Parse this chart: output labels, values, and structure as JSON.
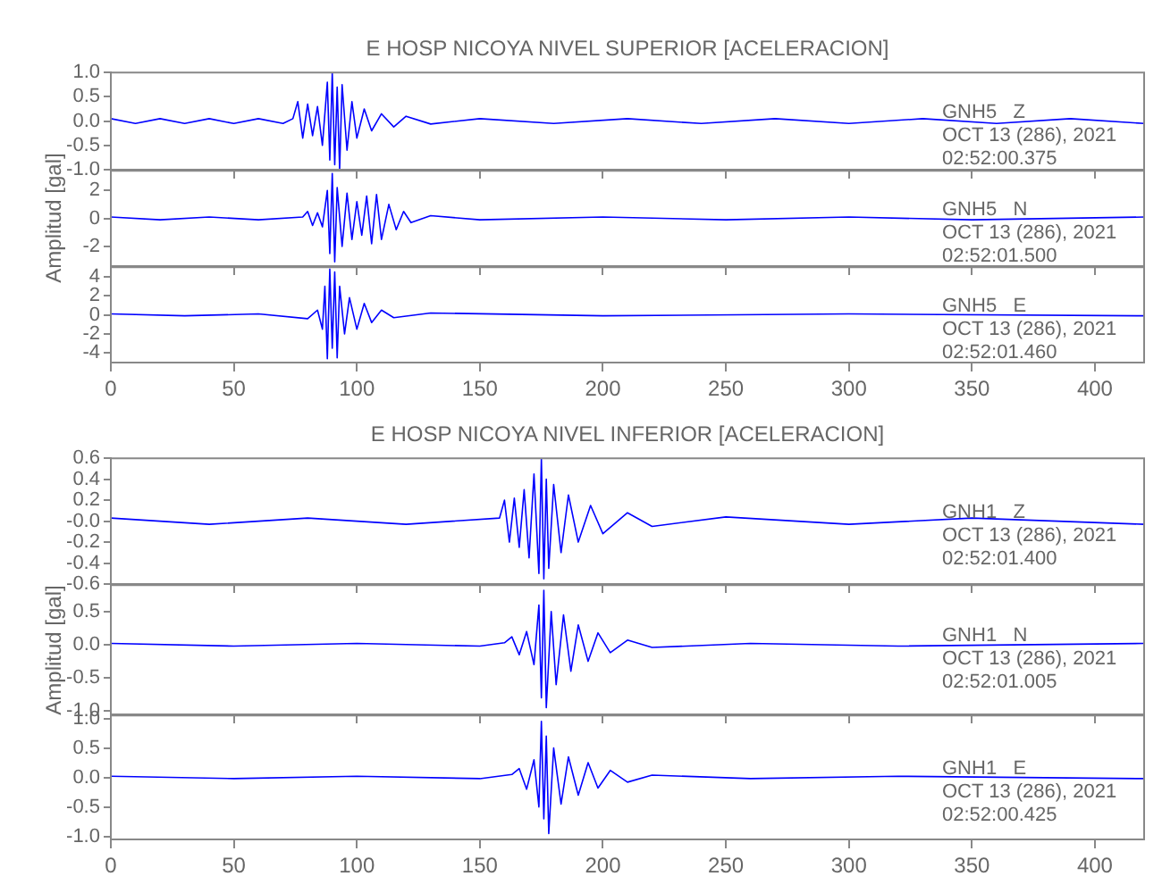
{
  "chart_data": [
    {
      "type": "line",
      "title": "E HOSP NICOYA NIVEL SUPERIOR [ACELERACION]",
      "color": "#0000ff",
      "marker": "none",
      "tick_labels": "y",
      "xlim": [
        0,
        420
      ],
      "xticks": [
        0,
        50,
        100,
        150,
        200,
        250,
        300,
        350,
        400
      ],
      "ylim": [
        -1,
        1
      ],
      "yticks": [
        {
          "value": -1,
          "label": "-1.0"
        },
        {
          "value": -0.5,
          "label": "-0.5"
        },
        {
          "value": 0,
          "label": "0.0"
        },
        {
          "value": 0.5,
          "label": "0.5"
        },
        {
          "value": 1,
          "label": "1.0"
        }
      ],
      "annotations": [
        "GNH5   Z",
        "OCT 13 (286), 2021",
        "02:52:00.375"
      ],
      "x": [
        0,
        10,
        20,
        30,
        40,
        50,
        60,
        70,
        74,
        76,
        78,
        80,
        82,
        84,
        86,
        88,
        89,
        90,
        91,
        92,
        93,
        94,
        96,
        98,
        100,
        103,
        106,
        110,
        115,
        120,
        130,
        150,
        180,
        210,
        240,
        270,
        300,
        330,
        360,
        390,
        420
      ],
      "values": [
        0.05,
        -0.05,
        0.05,
        -0.05,
        0.05,
        -0.05,
        0.05,
        -0.05,
        0.05,
        0.4,
        -0.35,
        0.35,
        -0.3,
        0.3,
        -0.5,
        0.8,
        -0.8,
        1.0,
        -0.9,
        0.7,
        -1.0,
        0.75,
        -0.6,
        0.4,
        -0.35,
        0.25,
        -0.2,
        0.15,
        -0.12,
        0.1,
        -0.06,
        0.05,
        -0.05,
        0.05,
        -0.05,
        0.05,
        -0.05,
        0.05,
        -0.05,
        0.05,
        -0.05
      ]
    },
    {
      "type": "line",
      "ylabel": "Amplitud [gal]",
      "color": "#0000ff",
      "marker": "none",
      "tick_labels": "y",
      "xlim": [
        0,
        420
      ],
      "xticks": [
        0,
        50,
        100,
        150,
        200,
        250,
        300,
        350,
        400
      ],
      "ylim": [
        -3.4,
        3.4
      ],
      "yticks": [
        -2,
        0,
        2
      ],
      "annotations": [
        "GNH5   N",
        "OCT 13 (286), 2021",
        "02:52:01.500"
      ],
      "x": [
        0,
        20,
        40,
        60,
        78,
        80,
        82,
        84,
        86,
        88,
        89,
        90,
        91,
        92,
        94,
        96,
        98,
        100,
        102,
        104,
        106,
        108,
        110,
        113,
        116,
        119,
        122,
        130,
        150,
        200,
        250,
        300,
        350,
        420
      ],
      "values": [
        0.1,
        -0.1,
        0.1,
        -0.1,
        0.1,
        0.5,
        -0.5,
        0.4,
        -0.6,
        2.0,
        -2.5,
        3.2,
        -3.1,
        2.2,
        -2.0,
        1.8,
        -1.5,
        1.2,
        -1.2,
        1.6,
        -1.8,
        1.7,
        -1.5,
        1.0,
        -0.8,
        0.5,
        -0.3,
        0.2,
        -0.1,
        0.1,
        -0.1,
        0.1,
        -0.1,
        0.1
      ]
    },
    {
      "type": "line",
      "color": "#0000ff",
      "marker": "none",
      "xlim": [
        0,
        420
      ],
      "xticks": [
        0,
        50,
        100,
        150,
        200,
        250,
        300,
        350,
        400
      ],
      "ylim": [
        -5,
        5
      ],
      "yticks": [
        -4,
        -2,
        0,
        2,
        4
      ],
      "annotations": [
        "GNH5   E",
        "OCT 13 (286), 2021",
        "02:52:01.460"
      ],
      "x": [
        0,
        30,
        60,
        80,
        84,
        86,
        87,
        88,
        89,
        90,
        91,
        92,
        93,
        95,
        97,
        100,
        103,
        106,
        110,
        115,
        130,
        200,
        300,
        420
      ],
      "values": [
        0.1,
        -0.1,
        0.1,
        -0.4,
        0.5,
        -1.5,
        3.0,
        -4.6,
        4.8,
        -3.5,
        4.5,
        -4.5,
        3.0,
        -2.0,
        1.8,
        -1.5,
        1.2,
        -0.8,
        0.5,
        -0.3,
        0.2,
        -0.1,
        0.1,
        -0.1
      ]
    },
    {
      "type": "line",
      "title": "E HOSP NICOYA NIVEL INFERIOR [ACELERACION]",
      "color": "#0000ff",
      "marker": "none",
      "tick_labels": "y",
      "xlim": [
        0,
        420
      ],
      "xticks": [
        0,
        50,
        100,
        150,
        200,
        250,
        300,
        350,
        400
      ],
      "ylim": [
        -0.6,
        0.6
      ],
      "yticks": [
        {
          "value": -0.6,
          "label": "-0.6"
        },
        {
          "value": -0.4,
          "label": "-0.4"
        },
        {
          "value": -0.2,
          "label": "-0.2"
        },
        {
          "value": 0,
          "label": "-0.0"
        },
        {
          "value": 0.2,
          "label": "0.2"
        },
        {
          "value": 0.4,
          "label": "0.4"
        },
        {
          "value": 0.6,
          "label": "0.6"
        }
      ],
      "annotations": [
        "GNH1   Z",
        "OCT 13 (286), 2021",
        "02:52:01.400"
      ],
      "x": [
        0,
        40,
        80,
        120,
        158,
        160,
        162,
        164,
        166,
        168,
        170,
        172,
        174,
        175,
        176,
        177,
        178,
        180,
        183,
        186,
        190,
        195,
        200,
        210,
        220,
        250,
        300,
        350,
        420
      ],
      "values": [
        0.03,
        -0.03,
        0.03,
        -0.03,
        0.03,
        0.2,
        -0.2,
        0.22,
        -0.25,
        0.3,
        -0.35,
        0.45,
        -0.5,
        0.6,
        -0.55,
        0.4,
        -0.45,
        0.35,
        -0.3,
        0.25,
        -0.2,
        0.15,
        -0.12,
        0.08,
        -0.05,
        0.04,
        -0.03,
        0.03,
        -0.03
      ]
    },
    {
      "type": "line",
      "ylabel": "Amplitud [gal]",
      "color": "#0000ff",
      "marker": "none",
      "tick_labels": "y",
      "xlim": [
        0,
        420
      ],
      "xticks": [
        0,
        50,
        100,
        150,
        200,
        250,
        300,
        350,
        400
      ],
      "ylim": [
        -1.05,
        0.9
      ],
      "yticks": [
        {
          "value": -1,
          "label": "-1.0"
        },
        {
          "value": -0.5,
          "label": "-0.5"
        },
        {
          "value": 0,
          "label": "0.0"
        },
        {
          "value": 0.5,
          "label": "0.5"
        }
      ],
      "annotations": [
        "GNH1   N",
        "OCT 13 (286), 2021",
        "02:52:01.005"
      ],
      "x": [
        0,
        50,
        100,
        150,
        160,
        163,
        166,
        169,
        172,
        174,
        175,
        176,
        177,
        179,
        181,
        184,
        187,
        190,
        194,
        198,
        203,
        210,
        220,
        260,
        320,
        420
      ],
      "values": [
        0.02,
        -0.02,
        0.02,
        -0.02,
        0.03,
        0.12,
        -0.15,
        0.2,
        -0.3,
        0.6,
        -0.8,
        0.82,
        -0.95,
        0.5,
        -0.6,
        0.45,
        -0.4,
        0.3,
        -0.25,
        0.18,
        -0.12,
        0.07,
        -0.04,
        0.02,
        -0.02,
        0.02
      ]
    },
    {
      "type": "line",
      "color": "#0000ff",
      "marker": "none",
      "xlim": [
        0,
        420
      ],
      "xticks": [
        0,
        50,
        100,
        150,
        200,
        250,
        300,
        350,
        400
      ],
      "ylim": [
        -1.05,
        1.05
      ],
      "yticks": [
        {
          "value": -1,
          "label": "-1.0"
        },
        {
          "value": -0.5,
          "label": "-0.5"
        },
        {
          "value": 0,
          "label": "0.0"
        },
        {
          "value": 0.5,
          "label": "0.5"
        },
        {
          "value": 1,
          "label": "1.0"
        }
      ],
      "annotations": [
        "GNH1   E",
        "OCT 13 (286), 2021",
        "02:52:00.425"
      ],
      "x": [
        0,
        50,
        100,
        150,
        163,
        166,
        169,
        172,
        174,
        175,
        176,
        177,
        178,
        180,
        183,
        186,
        190,
        194,
        198,
        203,
        210,
        220,
        260,
        320,
        420
      ],
      "values": [
        0.02,
        -0.02,
        0.02,
        -0.02,
        0.05,
        0.15,
        -0.2,
        0.3,
        -0.5,
        0.95,
        -0.7,
        0.7,
        -0.95,
        0.5,
        -0.45,
        0.35,
        -0.3,
        0.25,
        -0.18,
        0.12,
        -0.08,
        0.04,
        -0.02,
        0.02,
        -0.02
      ]
    }
  ]
}
